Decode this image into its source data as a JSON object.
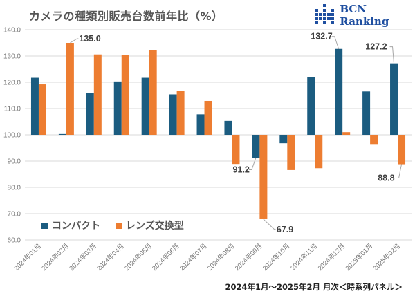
{
  "header": {
    "title": "カメラの種類別販売台数前年比（%）",
    "brand": "BCN Ranking"
  },
  "footer": {
    "caption": "2024年1月～2025年2月 月次＜時系列パネル＞"
  },
  "colors": {
    "compact": "#1b5c80",
    "lens": "#ed7d31",
    "grid": "#d9d9d9",
    "brand": "#1f4fa0"
  },
  "chart_data": {
    "type": "bar",
    "title": "カメラの種類別販売台数前年比（%）",
    "xlabel": "",
    "ylabel": "",
    "baseline": 100,
    "ylim": [
      60,
      140
    ],
    "yticks": [
      60,
      70,
      80,
      90,
      100,
      110,
      120,
      130,
      140
    ],
    "ytick_labels": [
      "60.0",
      "70.0",
      "80.0",
      "90.0",
      "100.0",
      "110.0",
      "120.0",
      "130.0",
      "140.0"
    ],
    "grid": true,
    "legend_position": "bottom-left",
    "categories": [
      "2024年01月",
      "2024年02月",
      "2024年03月",
      "2024年04月",
      "2024年05月",
      "2024年06月",
      "2024年07月",
      "2024年08月",
      "2024年09月",
      "2024年10月",
      "2024年11月",
      "2024年12月",
      "2025年01月",
      "2025年02月"
    ],
    "series": [
      {
        "name": "コンパクト",
        "values": [
          121.7,
          100.3,
          116.0,
          120.3,
          121.7,
          115.4,
          107.8,
          105.3,
          91.2,
          96.8,
          121.9,
          132.7,
          116.5,
          127.2
        ]
      },
      {
        "name": "レンズ交換型",
        "values": [
          119.2,
          135.0,
          130.6,
          130.3,
          132.2,
          116.8,
          112.9,
          88.9,
          67.9,
          86.6,
          87.3,
          101.0,
          96.5,
          88.8
        ]
      }
    ],
    "annotations": [
      {
        "series": 1,
        "index": 1,
        "text": "135.0"
      },
      {
        "series": 0,
        "index": 8,
        "text": "91.2"
      },
      {
        "series": 1,
        "index": 8,
        "text": "67.9"
      },
      {
        "series": 0,
        "index": 11,
        "text": "132.7"
      },
      {
        "series": 0,
        "index": 13,
        "text": "127.2"
      },
      {
        "series": 1,
        "index": 13,
        "text": "88.8"
      }
    ]
  }
}
